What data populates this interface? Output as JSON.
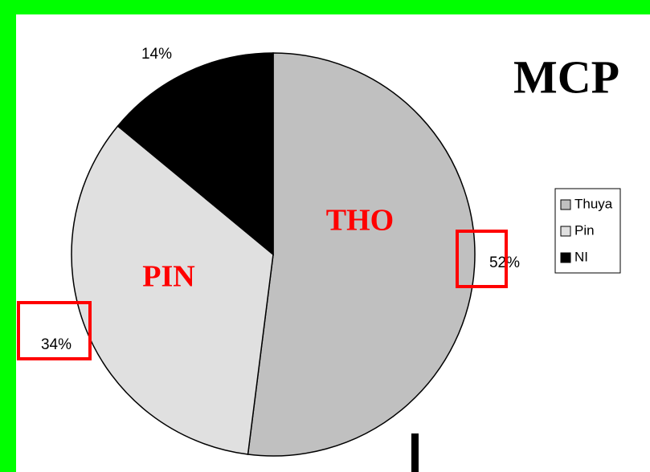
{
  "chart_data": {
    "type": "pie",
    "title": "MCP",
    "categories": [
      "Thuya",
      "Pin",
      "NI"
    ],
    "values": [
      52,
      34,
      14
    ],
    "value_labels": [
      "52%",
      "34%",
      "14%"
    ],
    "colors": [
      "#c0c0c0",
      "#e0e0e0",
      "#000000"
    ],
    "annotations": [
      "THO",
      "PIN"
    ],
    "legend": "right"
  }
}
